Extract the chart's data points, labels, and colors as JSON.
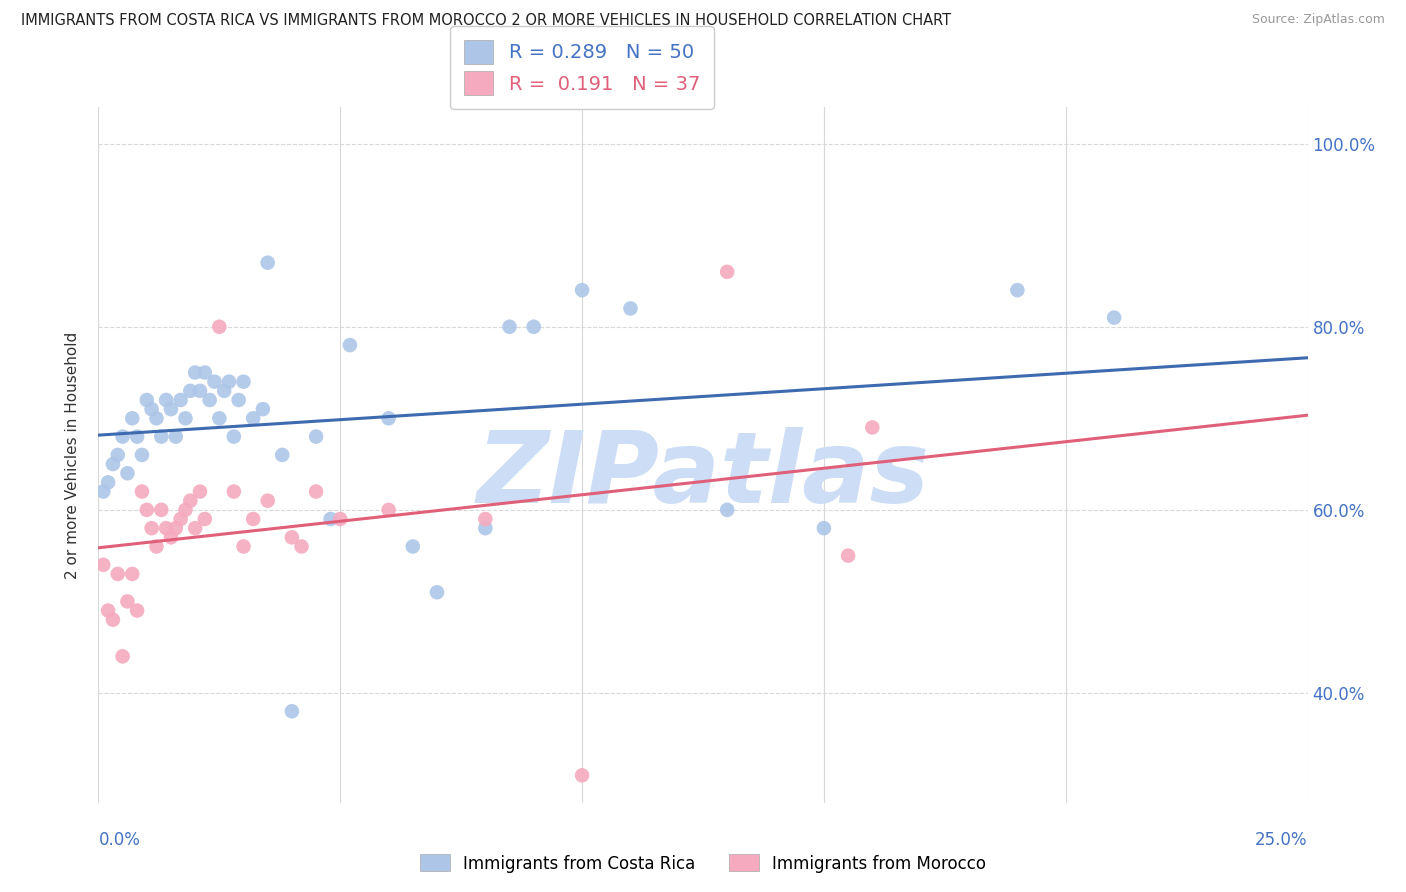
{
  "title": "IMMIGRANTS FROM COSTA RICA VS IMMIGRANTS FROM MOROCCO 2 OR MORE VEHICLES IN HOUSEHOLD CORRELATION CHART",
  "source": "Source: ZipAtlas.com",
  "ylabel": "2 or more Vehicles in Household",
  "x_min": 0.0,
  "x_max": 0.25,
  "y_min": 0.28,
  "y_max": 1.04,
  "x_ticks": [
    0.0,
    0.05,
    0.1,
    0.15,
    0.2,
    0.25
  ],
  "x_tick_labels": [
    "0.0%",
    "",
    "",
    "",
    "",
    "25.0%"
  ],
  "y_ticks": [
    0.4,
    0.6,
    0.8,
    1.0
  ],
  "y_tick_labels": [
    "40.0%",
    "60.0%",
    "80.0%",
    "100.0%"
  ],
  "background_color": "#ffffff",
  "grid_color": "#d8d8d8",
  "watermark_text": "ZIPatlas",
  "watermark_color": "#ccddf5",
  "costa_rica_color": "#adc6e8",
  "costa_rica_line_color": "#3e6ab0",
  "morocco_color": "#f5aabf",
  "morocco_line_color": "#e0607a",
  "costa_rica_R": 0.289,
  "costa_rica_N": 50,
  "morocco_R": 0.191,
  "morocco_N": 37,
  "costa_rica_x": [
    0.001,
    0.002,
    0.003,
    0.004,
    0.005,
    0.006,
    0.007,
    0.008,
    0.009,
    0.01,
    0.011,
    0.012,
    0.013,
    0.014,
    0.015,
    0.016,
    0.017,
    0.018,
    0.019,
    0.02,
    0.021,
    0.022,
    0.023,
    0.024,
    0.025,
    0.026,
    0.027,
    0.028,
    0.029,
    0.03,
    0.032,
    0.034,
    0.035,
    0.038,
    0.04,
    0.045,
    0.048,
    0.052,
    0.06,
    0.065,
    0.07,
    0.08,
    0.085,
    0.09,
    0.1,
    0.11,
    0.13,
    0.15,
    0.19,
    0.21
  ],
  "costa_rica_y": [
    0.62,
    0.63,
    0.65,
    0.66,
    0.68,
    0.64,
    0.7,
    0.68,
    0.66,
    0.72,
    0.71,
    0.7,
    0.68,
    0.72,
    0.71,
    0.68,
    0.72,
    0.7,
    0.73,
    0.75,
    0.73,
    0.75,
    0.72,
    0.74,
    0.7,
    0.73,
    0.74,
    0.68,
    0.72,
    0.74,
    0.7,
    0.71,
    0.87,
    0.66,
    0.38,
    0.68,
    0.59,
    0.78,
    0.7,
    0.56,
    0.51,
    0.58,
    0.8,
    0.8,
    0.84,
    0.82,
    0.6,
    0.58,
    0.84,
    0.81
  ],
  "morocco_x": [
    0.001,
    0.002,
    0.003,
    0.004,
    0.005,
    0.006,
    0.007,
    0.008,
    0.009,
    0.01,
    0.011,
    0.012,
    0.013,
    0.014,
    0.015,
    0.016,
    0.017,
    0.018,
    0.019,
    0.02,
    0.021,
    0.022,
    0.025,
    0.028,
    0.03,
    0.032,
    0.035,
    0.04,
    0.042,
    0.045,
    0.05,
    0.06,
    0.08,
    0.1,
    0.13,
    0.155,
    0.16
  ],
  "morocco_y": [
    0.54,
    0.49,
    0.48,
    0.53,
    0.44,
    0.5,
    0.53,
    0.49,
    0.62,
    0.6,
    0.58,
    0.56,
    0.6,
    0.58,
    0.57,
    0.58,
    0.59,
    0.6,
    0.61,
    0.58,
    0.62,
    0.59,
    0.8,
    0.62,
    0.56,
    0.59,
    0.61,
    0.57,
    0.56,
    0.62,
    0.59,
    0.6,
    0.59,
    0.31,
    0.86,
    0.55,
    0.69
  ]
}
